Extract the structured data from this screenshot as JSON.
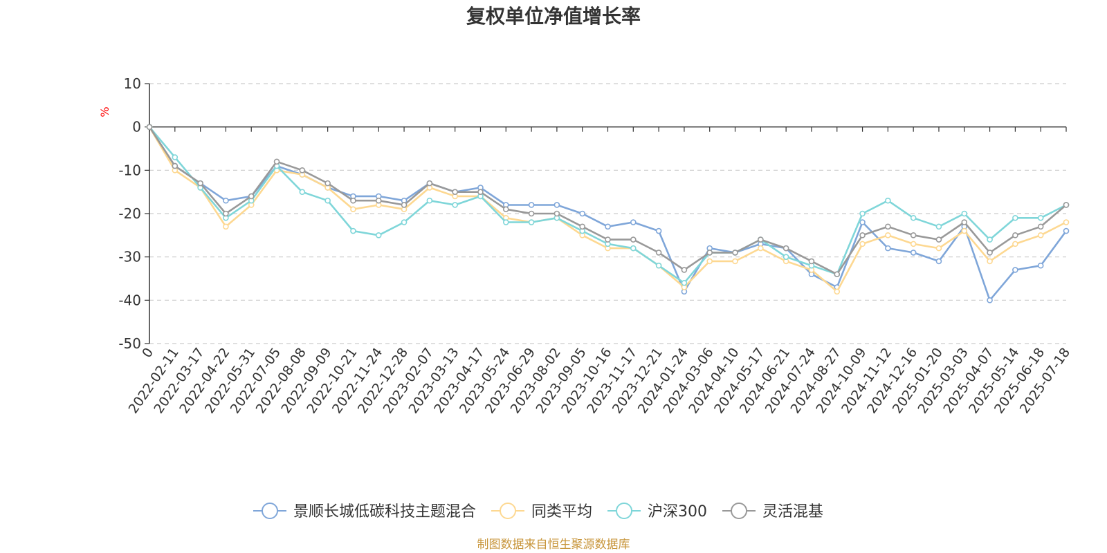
{
  "chart_data": {
    "type": "line",
    "title": "复权单位净值增长率",
    "ylabel": "%",
    "ylim": [
      -50,
      10
    ],
    "yticks": [
      10,
      0,
      -10,
      -20,
      -30,
      -40,
      -50
    ],
    "grid": true,
    "legend_position": "bottom-center",
    "x": [
      "0",
      "2022-02-11",
      "2022-03-17",
      "2022-04-22",
      "2022-05-31",
      "2022-07-05",
      "2022-08-08",
      "2022-09-09",
      "2022-10-21",
      "2022-11-24",
      "2022-12-28",
      "2023-02-07",
      "2023-03-13",
      "2023-04-17",
      "2023-05-24",
      "2023-06-29",
      "2023-08-02",
      "2023-09-05",
      "2023-10-16",
      "2023-11-17",
      "2023-12-21",
      "2024-01-24",
      "2024-03-06",
      "2024-04-10",
      "2024-05-17",
      "2024-06-21",
      "2024-07-24",
      "2024-08-27",
      "2024-10-09",
      "2024-11-12",
      "2024-12-16",
      "2025-01-20",
      "2025-03-03",
      "2025-04-07",
      "2025-05-14",
      "2025-06-18",
      "2025-07-18"
    ],
    "series": [
      {
        "name": "景顺长城低碳科技主题混合",
        "color": "#7fa6d9",
        "values": [
          0,
          -9,
          -13,
          -17,
          -16,
          -9,
          -11,
          -14,
          -16,
          -16,
          -17,
          -13,
          -15,
          -14,
          -18,
          -18,
          -18,
          -20,
          -23,
          -22,
          -24,
          -38,
          -28,
          -29,
          -27,
          -28,
          -34,
          -37,
          -22,
          -28,
          -29,
          -31,
          -23,
          -40,
          -33,
          -32,
          -24
        ]
      },
      {
        "name": "同类平均",
        "color": "#fdd891",
        "values": [
          0,
          -10,
          -14,
          -23,
          -18,
          -10,
          -11,
          -14,
          -19,
          -18,
          -19,
          -14,
          -16,
          -16,
          -21,
          -22,
          -21,
          -25,
          -28,
          -28,
          -32,
          -37,
          -31,
          -31,
          -28,
          -31,
          -33,
          -38,
          -27,
          -25,
          -27,
          -28,
          -24,
          -31,
          -27,
          -25,
          -22
        ]
      },
      {
        "name": "沪深300",
        "color": "#7fd6d9",
        "values": [
          0,
          -7,
          -14,
          -21,
          -17,
          -9,
          -15,
          -17,
          -24,
          -25,
          -22,
          -17,
          -18,
          -16,
          -22,
          -22,
          -21,
          -24,
          -27,
          -28,
          -32,
          -36,
          -29,
          -29,
          -26,
          -30,
          -32,
          -34,
          -20,
          -17,
          -21,
          -23,
          -20,
          -26,
          -21,
          -21,
          -18
        ]
      },
      {
        "name": "灵活混基",
        "color": "#999999",
        "values": [
          0,
          -9,
          -13,
          -20,
          -16,
          -8,
          -10,
          -13,
          -17,
          -17,
          -18,
          -13,
          -15,
          -15,
          -19,
          -20,
          -20,
          -23,
          -26,
          -26,
          -29,
          -33,
          -29,
          -29,
          -26,
          -28,
          -31,
          -34,
          -25,
          -23,
          -25,
          -26,
          -22,
          -29,
          -25,
          -23,
          -18
        ]
      }
    ]
  },
  "source_note": "制图数据来自恒生聚源数据库"
}
